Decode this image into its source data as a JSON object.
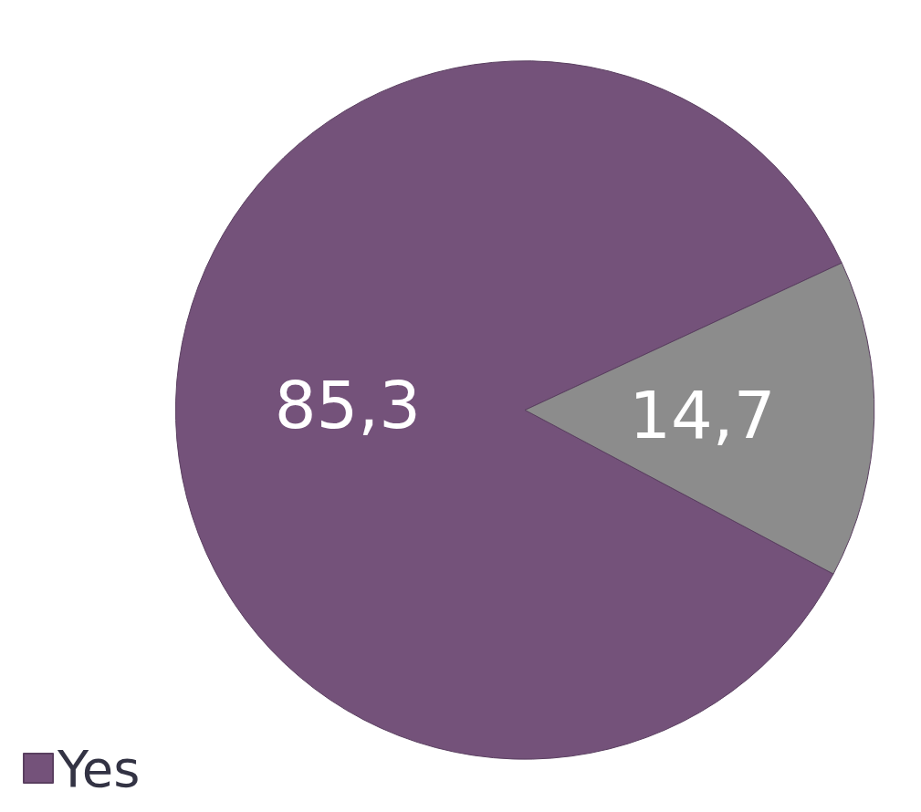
{
  "chart_data": {
    "type": "pie",
    "categories": [
      "Yes",
      null
    ],
    "values": [
      85.3,
      14.7
    ],
    "colors": [
      "#74527a",
      "#8c8c8c"
    ],
    "value_labels": [
      "85,3",
      "14,7"
    ],
    "legend": "bottom left"
  }
}
